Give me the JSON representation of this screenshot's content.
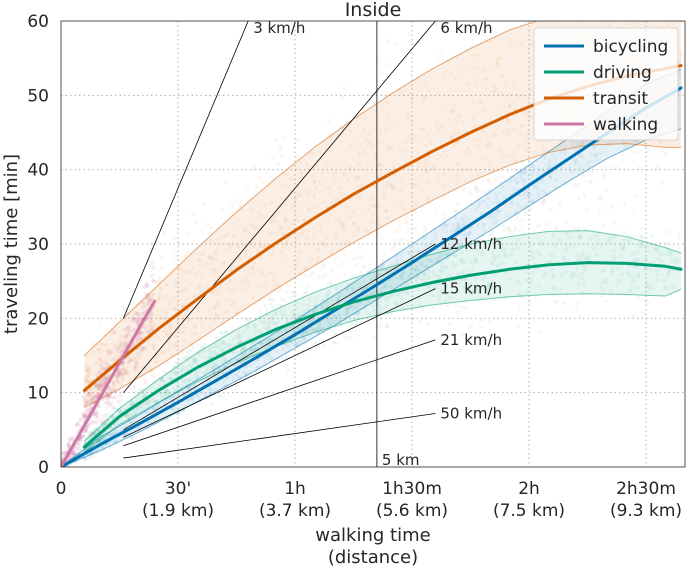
{
  "chart_data": {
    "type": "line",
    "title": "Inside",
    "xlabel_line1": "walking time",
    "xlabel_line2": "(distance)",
    "ylabel": "traveling time [min]",
    "xlim": [
      0,
      160
    ],
    "ylim": [
      0,
      60
    ],
    "x_ticks": [
      {
        "value": 0,
        "label": "0",
        "sub": ""
      },
      {
        "value": 30,
        "label": "30'",
        "sub": "(1.9 km)"
      },
      {
        "value": 60,
        "label": "1h",
        "sub": "(3.7 km)"
      },
      {
        "value": 90,
        "label": "1h30m",
        "sub": "(5.6 km)"
      },
      {
        "value": 120,
        "label": "2h",
        "sub": "(7.5 km)"
      },
      {
        "value": 150,
        "label": "2h30m",
        "sub": "(9.3 km)"
      }
    ],
    "y_ticks": [
      0,
      10,
      20,
      30,
      40,
      50,
      60
    ],
    "grid": true,
    "legend_position": "top-right",
    "series": [
      {
        "name": "bicycling",
        "color": "#0072b2",
        "x": [
          0,
          10,
          20,
          30,
          40,
          50,
          60,
          70,
          80,
          90,
          100,
          110,
          120,
          130,
          140,
          150,
          159
        ],
        "y": [
          0,
          3,
          5.8,
          8.7,
          11.7,
          14.7,
          17.8,
          21,
          24.2,
          27.5,
          30.9,
          34.3,
          37.9,
          41.4,
          44.9,
          48.3,
          51
        ],
        "band_low": [
          0,
          2.2,
          4.7,
          7.4,
          10.2,
          13,
          16,
          19,
          22.2,
          25.4,
          28.6,
          31.8,
          35.1,
          38.4,
          41.5,
          44,
          45.5
        ],
        "band_high": [
          0,
          4,
          7,
          10.2,
          13.3,
          16.5,
          19.7,
          23.1,
          26.5,
          30,
          33.5,
          37,
          40.6,
          44.2,
          47.8,
          51.5,
          53.5
        ]
      },
      {
        "name": "driving",
        "color": "#009e73",
        "x": [
          6,
          15,
          25,
          35,
          45,
          55,
          65,
          75,
          85,
          95,
          105,
          115,
          125,
          135,
          145,
          155,
          159
        ],
        "y": [
          2.7,
          6.8,
          10.3,
          13.4,
          16.1,
          18.5,
          20.5,
          22.2,
          23.6,
          24.8,
          25.8,
          26.6,
          27.2,
          27.5,
          27.4,
          27,
          26.6
        ],
        "band_low": [
          2,
          5.7,
          8.7,
          11.5,
          14,
          16.2,
          18.1,
          19.7,
          20.9,
          21.8,
          22.4,
          22.9,
          23.2,
          23.3,
          23.2,
          23,
          23.9
        ],
        "band_high": [
          3.5,
          7.9,
          11.8,
          15.4,
          18.5,
          21.2,
          23.5,
          25.4,
          27,
          28.6,
          30,
          31,
          31.7,
          31.8,
          31,
          29.5,
          28.8
        ]
      },
      {
        "name": "transit",
        "color": "#d55e00",
        "x": [
          6,
          15,
          25,
          35,
          45,
          55,
          65,
          75,
          85,
          95,
          105,
          115,
          125,
          135,
          145,
          155,
          159
        ],
        "y": [
          10.3,
          14.3,
          18.6,
          22.6,
          26.5,
          30.1,
          33.5,
          36.7,
          39.6,
          42.4,
          45,
          47.4,
          49.5,
          51.2,
          52.6,
          53.6,
          54
        ],
        "band_low": [
          8,
          10.5,
          13.6,
          17,
          20.5,
          23.9,
          27.1,
          30.2,
          33.1,
          35.8,
          38.4,
          40.6,
          42.3,
          43.3,
          43.5,
          43,
          43
        ],
        "band_high": [
          15,
          19.5,
          24.5,
          29.5,
          34.3,
          38.8,
          43,
          46.8,
          50.3,
          53.5,
          56.3,
          58.8,
          60.5,
          61,
          61,
          61,
          61
        ]
      },
      {
        "name": "walking",
        "color": "#cc79a7",
        "x": [
          0,
          3,
          6,
          9,
          12,
          15,
          18,
          21,
          24
        ],
        "y": [
          0,
          2.8,
          5.6,
          8.4,
          11.2,
          14,
          16.8,
          19.6,
          22.3
        ]
      }
    ],
    "speed_lines": [
      {
        "label": "3 km/h",
        "x0": 16,
        "y0": 20,
        "x1": 48,
        "y1": 60
      },
      {
        "label": "6 km/h",
        "x0": 16,
        "y0": 10,
        "x1": 96,
        "y1": 60
      },
      {
        "label": "12 km/h",
        "x0": 16,
        "y0": 5,
        "x1": 96,
        "y1": 30
      },
      {
        "label": "15 km/h",
        "x0": 16,
        "y0": 4,
        "x1": 96,
        "y1": 24
      },
      {
        "label": "21 km/h",
        "x0": 16,
        "y0": 2.86,
        "x1": 96,
        "y1": 17.1
      },
      {
        "label": "50 km/h",
        "x0": 16,
        "y0": 1.2,
        "x1": 96,
        "y1": 7.2
      }
    ],
    "vertical_marker": {
      "x": 81,
      "label": "5 km"
    }
  },
  "colors": {
    "grid": "#b0b0b0",
    "axis": "#262626",
    "background": "#ffffff"
  }
}
